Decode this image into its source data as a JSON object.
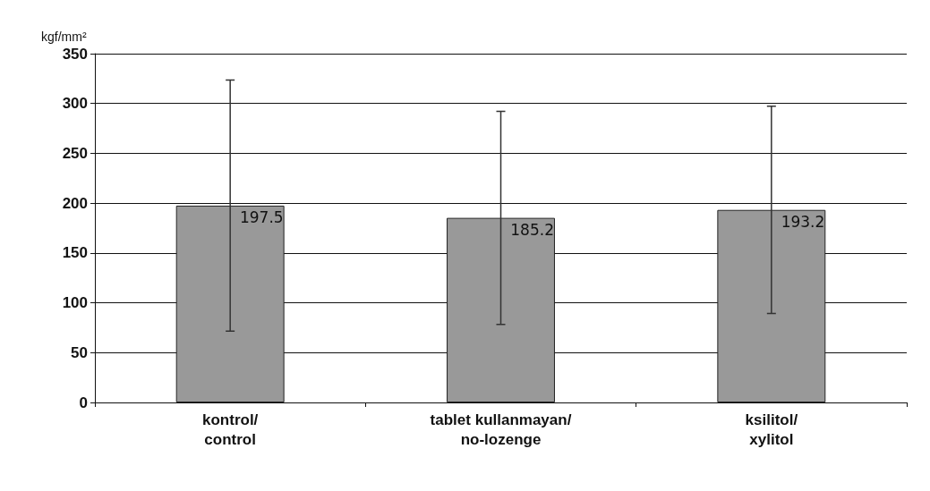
{
  "chart_data": {
    "type": "bar",
    "ylabel": "kgf/mm²",
    "categories": [
      "kontrol/\ncontrol",
      "tablet kullanmayan/\nno-lozenge",
      "ksilitol/\nxylitol"
    ],
    "values": [
      197.5,
      185.2,
      193.2
    ],
    "errors": [
      126,
      107,
      104
    ],
    "color": "#999999",
    "ylim": [
      0,
      350
    ],
    "yticks": [
      0,
      50,
      100,
      150,
      200,
      250,
      300,
      350
    ],
    "grid": "y",
    "data_labels": true
  }
}
